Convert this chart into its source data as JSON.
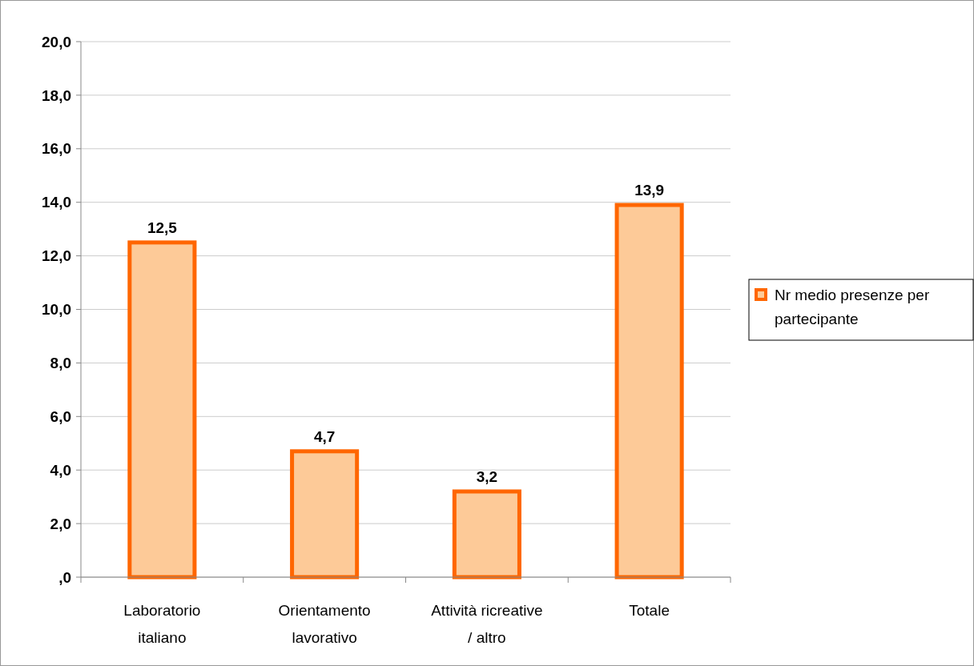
{
  "chart_data": {
    "type": "bar",
    "categories": [
      "Laboratorio italiano",
      "Orientamento lavorativo",
      "Attività ricreative / altro",
      "Totale"
    ],
    "series": [
      {
        "name": "Nr medio presenze per partecipante",
        "color": "#ff6600",
        "values": [
          12.5,
          4.7,
          3.2,
          13.9
        ],
        "value_labels": [
          "12,5",
          "4,7",
          "3,2",
          "13,9"
        ]
      }
    ],
    "ylim": [
      0,
      20
    ],
    "yticks": [
      {
        "value": 0,
        "label": ",0"
      },
      {
        "value": 2,
        "label": "2,0"
      },
      {
        "value": 4,
        "label": "4,0"
      },
      {
        "value": 6,
        "label": "6,0"
      },
      {
        "value": 8,
        "label": "8,0"
      },
      {
        "value": 10,
        "label": "10,0"
      },
      {
        "value": 12,
        "label": "12,0"
      },
      {
        "value": 14,
        "label": "14,0"
      },
      {
        "value": 16,
        "label": "16,0"
      },
      {
        "value": 18,
        "label": "18,0"
      },
      {
        "value": 20,
        "label": "20,0"
      }
    ],
    "grid": "y",
    "legend": "right"
  }
}
